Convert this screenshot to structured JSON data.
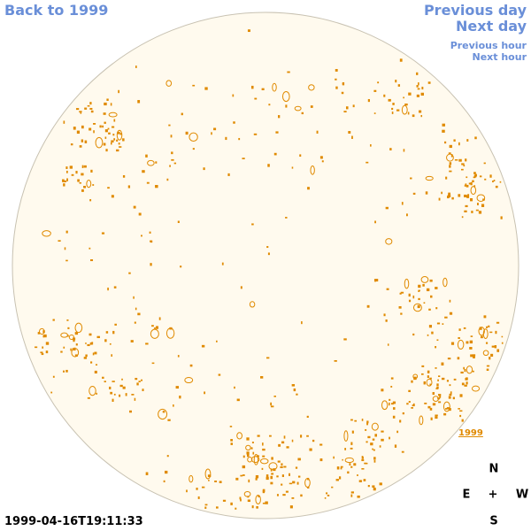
{
  "nav": {
    "back": "Back to 1999",
    "previous_day": "Previous day",
    "next_day": "Next day",
    "previous_hour": "Previous hour",
    "next_hour": "Next hour"
  },
  "image": {
    "year_label": "1999",
    "timestamp": "1999-04-16T19:11:33"
  },
  "compass": {
    "north": "N",
    "east": "E",
    "center": "+",
    "west": "W",
    "south": "S"
  },
  "colors": {
    "link": "#6a8fd8",
    "disk_fill": "#fffaee",
    "disk_edge": "#c8c2b2",
    "feature": "#e08a00"
  }
}
